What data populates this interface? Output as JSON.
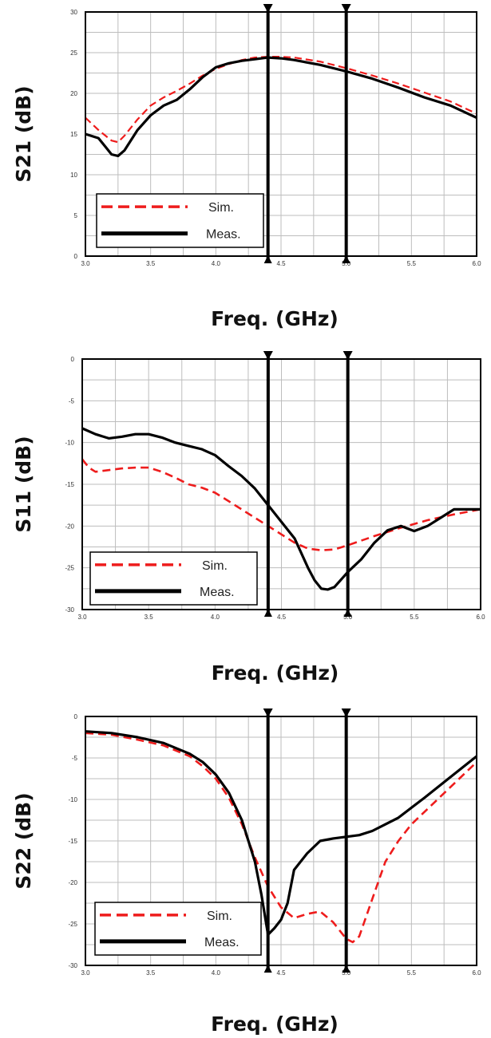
{
  "colors": {
    "sim": "#ee1c1c",
    "meas": "#000000",
    "grid": "#bdbdbd",
    "frame": "#000000"
  },
  "chart_data": [
    {
      "type": "line",
      "xlabel": "Freq. (GHz)",
      "ylabel": "S21 (dB)",
      "xlim": [
        3.0,
        6.0
      ],
      "ylim": [
        0,
        30
      ],
      "x_ticks": [
        3.0,
        3.5,
        4.0,
        4.5,
        5.0,
        5.5,
        6.0
      ],
      "x_tick_labels": [
        "3.0",
        "3.5",
        "4.0",
        "4.5",
        "5.0",
        "5.5",
        "6.0"
      ],
      "y_ticks": [
        0,
        5,
        10,
        15,
        20,
        25,
        30
      ],
      "y_tick_labels": [
        "0",
        "5",
        "10",
        "15",
        "20",
        "25",
        "30"
      ],
      "grid": true,
      "legend": "bottom-left",
      "markers": [
        4.4,
        5.0
      ],
      "series": [
        {
          "name": "Sim.",
          "style": "dashed",
          "x": [
            3.0,
            3.1,
            3.2,
            3.25,
            3.3,
            3.4,
            3.5,
            3.6,
            3.7,
            3.8,
            3.9,
            4.0,
            4.1,
            4.2,
            4.3,
            4.4,
            4.5,
            4.6,
            4.8,
            5.0,
            5.2,
            5.4,
            5.6,
            5.8,
            6.0
          ],
          "y": [
            17.0,
            15.5,
            14.2,
            14.0,
            14.8,
            16.8,
            18.5,
            19.5,
            20.3,
            21.2,
            22.2,
            23.0,
            23.6,
            24.1,
            24.4,
            24.5,
            24.5,
            24.4,
            23.9,
            23.1,
            22.2,
            21.2,
            20.1,
            19.0,
            17.5
          ]
        },
        {
          "name": "Meas.",
          "style": "solid",
          "x": [
            3.0,
            3.1,
            3.15,
            3.2,
            3.25,
            3.3,
            3.4,
            3.5,
            3.6,
            3.7,
            3.8,
            3.9,
            4.0,
            4.1,
            4.2,
            4.3,
            4.4,
            4.5,
            4.6,
            4.8,
            5.0,
            5.2,
            5.4,
            5.6,
            5.8,
            6.0
          ],
          "y": [
            15.0,
            14.5,
            13.5,
            12.5,
            12.3,
            13.0,
            15.5,
            17.3,
            18.5,
            19.2,
            20.5,
            22.0,
            23.2,
            23.7,
            24.0,
            24.2,
            24.4,
            24.3,
            24.1,
            23.5,
            22.7,
            21.8,
            20.7,
            19.5,
            18.5,
            17.0
          ]
        }
      ]
    },
    {
      "type": "line",
      "xlabel": "Freq. (GHz)",
      "ylabel": "S11 (dB)",
      "xlim": [
        3.0,
        6.0
      ],
      "ylim": [
        -30,
        0
      ],
      "x_ticks": [
        3.0,
        3.5,
        4.0,
        4.5,
        5.0,
        5.5,
        6.0
      ],
      "x_tick_labels": [
        "3.0",
        "3.5",
        "4.0",
        "4.5",
        "5.0",
        "5.5",
        "6.0"
      ],
      "y_ticks": [
        0,
        -5,
        -10,
        -15,
        -20,
        -25,
        -30
      ],
      "y_tick_labels": [
        "0",
        "-5",
        "-10",
        "-15",
        "-20",
        "-25",
        "-30"
      ],
      "grid": true,
      "legend": "bottom-left",
      "markers": [
        4.4,
        5.0
      ],
      "series": [
        {
          "name": "Sim.",
          "style": "dashed",
          "x": [
            3.0,
            3.05,
            3.1,
            3.2,
            3.3,
            3.4,
            3.5,
            3.6,
            3.7,
            3.8,
            3.9,
            4.0,
            4.1,
            4.2,
            4.3,
            4.4,
            4.5,
            4.6,
            4.7,
            4.8,
            4.9,
            5.0,
            5.2,
            5.4,
            5.6,
            5.8,
            6.0
          ],
          "y": [
            -12.0,
            -13.0,
            -13.5,
            -13.3,
            -13.1,
            -13.0,
            -13.0,
            -13.5,
            -14.2,
            -15.0,
            -15.4,
            -16.0,
            -17.0,
            -18.0,
            -19.0,
            -20.0,
            -21.0,
            -22.0,
            -22.7,
            -22.9,
            -22.8,
            -22.3,
            -21.2,
            -20.2,
            -19.3,
            -18.6,
            -18.0
          ]
        },
        {
          "name": "Meas.",
          "style": "solid",
          "x": [
            3.0,
            3.1,
            3.2,
            3.3,
            3.4,
            3.5,
            3.6,
            3.7,
            3.8,
            3.9,
            4.0,
            4.1,
            4.2,
            4.3,
            4.4,
            4.5,
            4.6,
            4.7,
            4.75,
            4.8,
            4.85,
            4.9,
            5.0,
            5.1,
            5.2,
            5.3,
            5.4,
            5.5,
            5.6,
            5.7,
            5.8,
            6.0
          ],
          "y": [
            -8.3,
            -9.0,
            -9.5,
            -9.3,
            -9.0,
            -9.0,
            -9.4,
            -10.0,
            -10.4,
            -10.8,
            -11.5,
            -12.8,
            -14.0,
            -15.5,
            -17.5,
            -19.5,
            -21.5,
            -25.0,
            -26.5,
            -27.5,
            -27.6,
            -27.3,
            -25.5,
            -24.0,
            -22.0,
            -20.5,
            -20.0,
            -20.6,
            -20.0,
            -19.0,
            -18.0,
            -18.0
          ]
        }
      ]
    },
    {
      "type": "line",
      "xlabel": "Freq. (GHz)",
      "ylabel": "S22 (dB)",
      "xlim": [
        3.0,
        6.0
      ],
      "ylim": [
        -30,
        0
      ],
      "x_ticks": [
        3.0,
        3.5,
        4.0,
        4.5,
        5.0,
        5.5,
        6.0
      ],
      "x_tick_labels": [
        "3.0",
        "3.5",
        "4.0",
        "4.5",
        "5.0",
        "5.5",
        "6.0"
      ],
      "y_ticks": [
        0,
        -5,
        -10,
        -15,
        -20,
        -25,
        -30
      ],
      "y_tick_labels": [
        "0",
        "-5",
        "-10",
        "-15",
        "-20",
        "-25",
        "-30"
      ],
      "grid": true,
      "legend": "bottom-left",
      "markers": [
        4.4,
        5.0
      ],
      "series": [
        {
          "name": "Sim.",
          "style": "dashed",
          "x": [
            3.0,
            3.2,
            3.4,
            3.6,
            3.8,
            3.9,
            4.0,
            4.1,
            4.2,
            4.3,
            4.4,
            4.5,
            4.6,
            4.7,
            4.8,
            4.9,
            5.0,
            5.05,
            5.1,
            5.2,
            5.3,
            5.4,
            5.5,
            5.6,
            5.8,
            6.0
          ],
          "y": [
            -2.0,
            -2.2,
            -2.8,
            -3.5,
            -4.8,
            -6.0,
            -7.5,
            -9.8,
            -13.0,
            -17.0,
            -20.5,
            -23.0,
            -24.3,
            -23.8,
            -23.5,
            -24.8,
            -26.8,
            -27.2,
            -26.5,
            -22.0,
            -17.5,
            -15.0,
            -13.0,
            -11.5,
            -8.5,
            -5.5
          ]
        },
        {
          "name": "Meas.",
          "style": "solid",
          "x": [
            3.0,
            3.2,
            3.4,
            3.6,
            3.8,
            3.9,
            4.0,
            4.1,
            4.2,
            4.3,
            4.35,
            4.4,
            4.45,
            4.5,
            4.55,
            4.6,
            4.7,
            4.8,
            4.9,
            5.0,
            5.1,
            5.2,
            5.3,
            5.4,
            5.5,
            5.6,
            5.8,
            6.0
          ],
          "y": [
            -1.8,
            -2.0,
            -2.5,
            -3.2,
            -4.5,
            -5.5,
            -7.0,
            -9.2,
            -12.5,
            -17.5,
            -21.5,
            -26.3,
            -25.5,
            -24.5,
            -22.5,
            -18.5,
            -16.5,
            -15.0,
            -14.7,
            -14.5,
            -14.3,
            -13.8,
            -13.0,
            -12.2,
            -11.0,
            -9.8,
            -7.3,
            -4.8
          ]
        }
      ]
    }
  ]
}
